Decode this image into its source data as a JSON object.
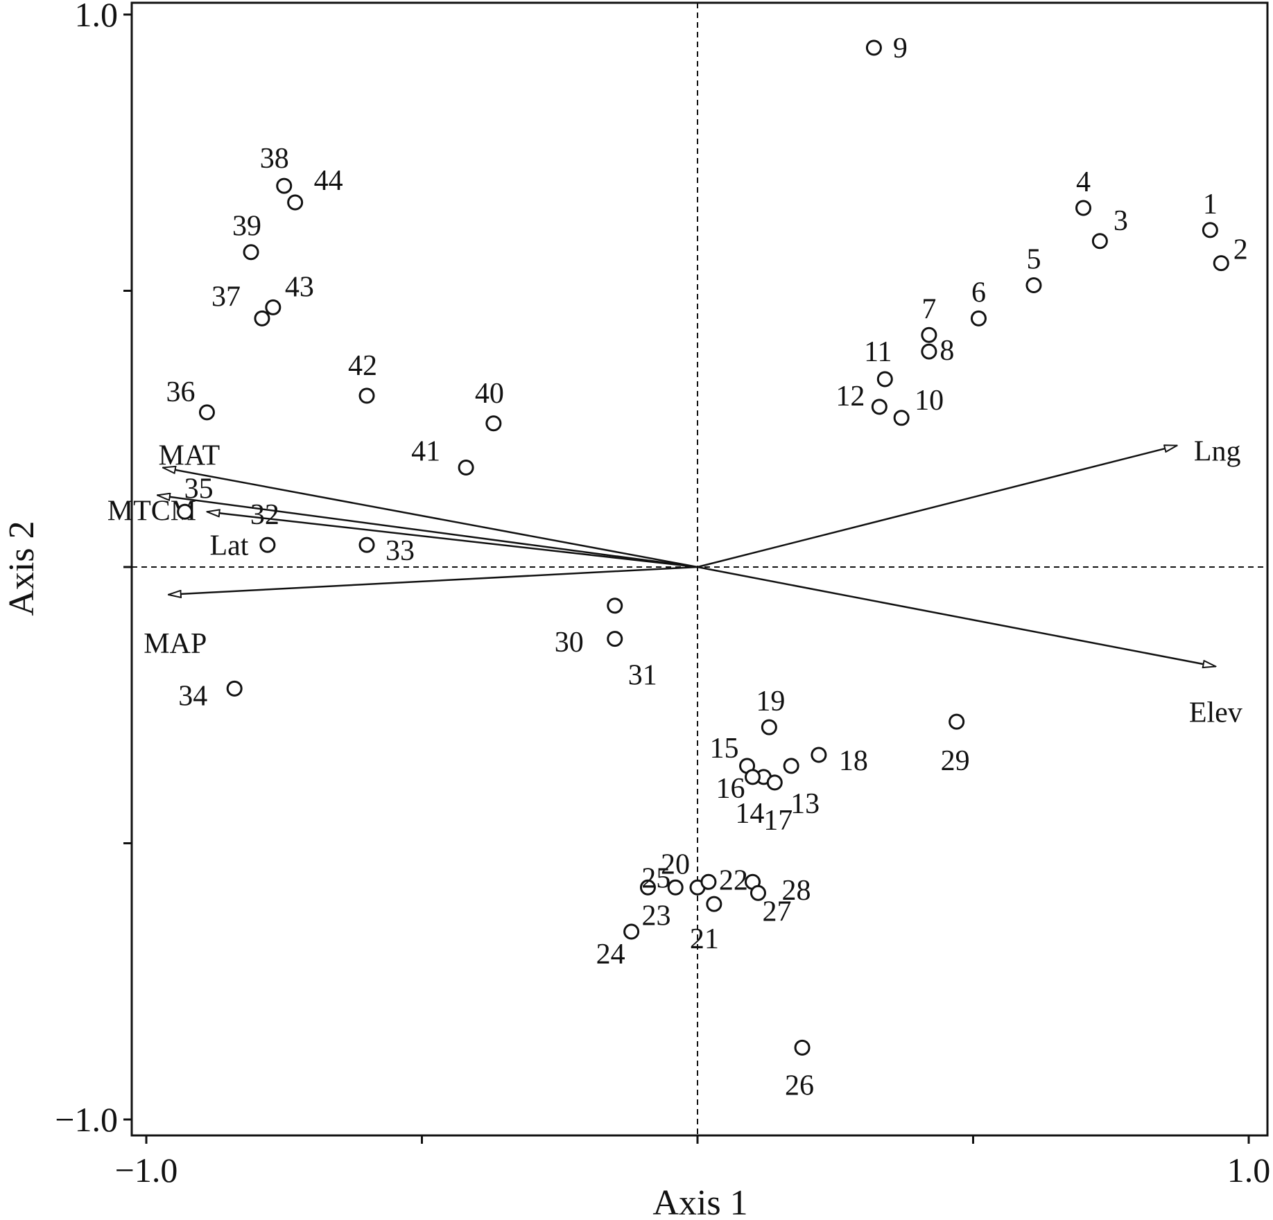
{
  "chart_data": {
    "type": "scatter",
    "title": "",
    "xlabel": "Axis 1",
    "ylabel": "Axis 2",
    "xlim": [
      -1.0,
      1.0
    ],
    "ylim": [
      -1.0,
      1.0
    ],
    "x_tick_labels": [
      "−1.0",
      "1.0"
    ],
    "y_tick_labels": [
      "1.0",
      "−1.0"
    ],
    "grid": false,
    "reference_lines": "dashed lines through the origin",
    "marker": "open-circle",
    "color": "#111111",
    "points": [
      {
        "label": "1",
        "x": 0.93,
        "y": 0.61
      },
      {
        "label": "2",
        "x": 0.95,
        "y": 0.55
      },
      {
        "label": "3",
        "x": 0.73,
        "y": 0.59
      },
      {
        "label": "4",
        "x": 0.7,
        "y": 0.65
      },
      {
        "label": "5",
        "x": 0.61,
        "y": 0.51
      },
      {
        "label": "6",
        "x": 0.51,
        "y": 0.45
      },
      {
        "label": "7",
        "x": 0.42,
        "y": 0.42
      },
      {
        "label": "8",
        "x": 0.42,
        "y": 0.39
      },
      {
        "label": "9",
        "x": 0.32,
        "y": 0.94
      },
      {
        "label": "10",
        "x": 0.37,
        "y": 0.27
      },
      {
        "label": "11",
        "x": 0.34,
        "y": 0.34
      },
      {
        "label": "12",
        "x": 0.33,
        "y": 0.29
      },
      {
        "label": "13",
        "x": 0.17,
        "y": -0.36
      },
      {
        "label": "14",
        "x": 0.12,
        "y": -0.38
      },
      {
        "label": "15",
        "x": 0.09,
        "y": -0.36
      },
      {
        "label": "16",
        "x": 0.1,
        "y": -0.38
      },
      {
        "label": "17",
        "x": 0.14,
        "y": -0.39
      },
      {
        "label": "18",
        "x": 0.22,
        "y": -0.34
      },
      {
        "label": "19",
        "x": 0.13,
        "y": -0.29
      },
      {
        "label": "20",
        "x": 0.0,
        "y": -0.58
      },
      {
        "label": "21",
        "x": 0.03,
        "y": -0.61
      },
      {
        "label": "22",
        "x": 0.02,
        "y": -0.57
      },
      {
        "label": "23",
        "x": -0.09,
        "y": -0.58
      },
      {
        "label": "24",
        "x": -0.12,
        "y": -0.66
      },
      {
        "label": "25",
        "x": -0.04,
        "y": -0.58
      },
      {
        "label": "26",
        "x": 0.19,
        "y": -0.87
      },
      {
        "label": "27",
        "x": 0.1,
        "y": -0.57
      },
      {
        "label": "28",
        "x": 0.11,
        "y": -0.59
      },
      {
        "label": "29",
        "x": 0.47,
        "y": -0.28
      },
      {
        "label": "30",
        "x": -0.15,
        "y": -0.07
      },
      {
        "label": "31",
        "x": -0.15,
        "y": -0.13
      },
      {
        "label": "32",
        "x": -0.78,
        "y": 0.04
      },
      {
        "label": "33",
        "x": -0.6,
        "y": 0.04
      },
      {
        "label": "34",
        "x": -0.84,
        "y": -0.22
      },
      {
        "label": "35",
        "x": -0.93,
        "y": 0.1
      },
      {
        "label": "36",
        "x": -0.89,
        "y": 0.28
      },
      {
        "label": "37",
        "x": -0.79,
        "y": 0.45
      },
      {
        "label": "38",
        "x": -0.75,
        "y": 0.69
      },
      {
        "label": "39",
        "x": -0.81,
        "y": 0.57
      },
      {
        "label": "40",
        "x": -0.37,
        "y": 0.26
      },
      {
        "label": "41",
        "x": -0.42,
        "y": 0.18
      },
      {
        "label": "42",
        "x": -0.6,
        "y": 0.31
      },
      {
        "label": "43",
        "x": -0.77,
        "y": 0.47
      },
      {
        "label": "44",
        "x": -0.73,
        "y": 0.66
      }
    ],
    "vectors": [
      {
        "name": "Lng",
        "x": 0.87,
        "y": 0.22
      },
      {
        "name": "Elev",
        "x": 0.94,
        "y": -0.18
      },
      {
        "name": "MAT",
        "x": -0.97,
        "y": 0.18
      },
      {
        "name": "MTCM",
        "x": -0.98,
        "y": 0.13
      },
      {
        "name": "Lat",
        "x": -0.89,
        "y": 0.1
      },
      {
        "name": "MAP",
        "x": -0.96,
        "y": -0.05
      }
    ]
  }
}
